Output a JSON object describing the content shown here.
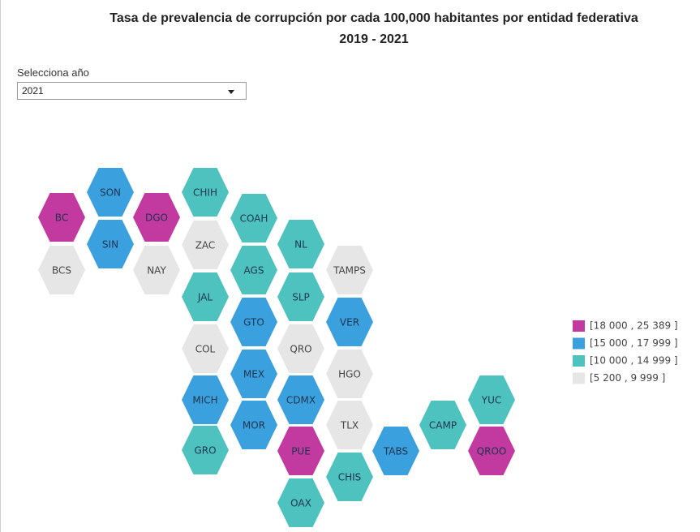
{
  "header": {
    "title": "Tasa de prevalencia de corrupción por cada 100,000 habitantes por entidad federativa",
    "subtitle": "2019 - 2021"
  },
  "filter": {
    "label": "Selecciona año",
    "selected": "2021"
  },
  "legend": [
    {
      "label": "[18 000 , 25 389 ]",
      "color": "#c2399f"
    },
    {
      "label": "[15 000 , 17 999 ]",
      "color": "#3aa0de"
    },
    {
      "label": "[10 000 , 14 999 ]",
      "color": "#4dc2bf"
    },
    {
      "label": "[5 200 , 9 999 ]",
      "color": "#e6e6e6"
    }
  ],
  "states": [
    {
      "label": "BC",
      "class": 0
    },
    {
      "label": "BCS",
      "class": 3
    },
    {
      "label": "SON",
      "class": 1
    },
    {
      "label": "SIN",
      "class": 1
    },
    {
      "label": "DGO",
      "class": 0
    },
    {
      "label": "NAY",
      "class": 3
    },
    {
      "label": "CHIH",
      "class": 2
    },
    {
      "label": "ZAC",
      "class": 3
    },
    {
      "label": "JAL",
      "class": 2
    },
    {
      "label": "COL",
      "class": 3
    },
    {
      "label": "MICH",
      "class": 1
    },
    {
      "label": "GRO",
      "class": 2
    },
    {
      "label": "COAH",
      "class": 2
    },
    {
      "label": "AGS",
      "class": 2
    },
    {
      "label": "GTO",
      "class": 1
    },
    {
      "label": "MEX",
      "class": 1
    },
    {
      "label": "MOR",
      "class": 1
    },
    {
      "label": "NL",
      "class": 2
    },
    {
      "label": "SLP",
      "class": 2
    },
    {
      "label": "QRO",
      "class": 3
    },
    {
      "label": "CDMX",
      "class": 1
    },
    {
      "label": "PUE",
      "class": 0
    },
    {
      "label": "OAX",
      "class": 2
    },
    {
      "label": "TAMPS",
      "class": 3
    },
    {
      "label": "VER",
      "class": 1
    },
    {
      "label": "HGO",
      "class": 3
    },
    {
      "label": "TLX",
      "class": 3
    },
    {
      "label": "CHIS",
      "class": 2
    },
    {
      "label": "TABS",
      "class": 1
    },
    {
      "label": "CAMP",
      "class": 2
    },
    {
      "label": "YUC",
      "class": 2
    },
    {
      "label": "QROO",
      "class": 0
    }
  ]
}
